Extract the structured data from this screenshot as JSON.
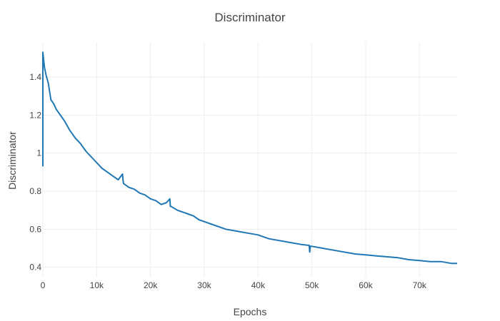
{
  "chart_data": {
    "type": "line",
    "title": "Discriminator",
    "xlabel": "Epochs",
    "ylabel": "Discriminator",
    "xlim": [
      0,
      77000
    ],
    "ylim": [
      0.35,
      1.58
    ],
    "x_ticks": [
      {
        "value": 0,
        "label": "0"
      },
      {
        "value": 10000,
        "label": "10k"
      },
      {
        "value": 20000,
        "label": "20k"
      },
      {
        "value": 30000,
        "label": "30k"
      },
      {
        "value": 40000,
        "label": "40k"
      },
      {
        "value": 50000,
        "label": "50k"
      },
      {
        "value": 60000,
        "label": "60k"
      },
      {
        "value": 70000,
        "label": "70k"
      }
    ],
    "y_ticks": [
      {
        "value": 0.4,
        "label": "0.4"
      },
      {
        "value": 0.6,
        "label": "0.6"
      },
      {
        "value": 0.8,
        "label": "0.8"
      },
      {
        "value": 1.0,
        "label": "1"
      },
      {
        "value": 1.2,
        "label": "1.2"
      },
      {
        "value": 1.4,
        "label": "1.4"
      }
    ],
    "grid": true,
    "legend": "none",
    "series": [
      {
        "color": "#1f77b4",
        "x": [
          0,
          0,
          100,
          300,
          600,
          1000,
          1500,
          2000,
          2500,
          3000,
          3500,
          4000,
          5000,
          6000,
          7000,
          8000,
          9000,
          10000,
          11000,
          12000,
          13000,
          14000,
          14800,
          14900,
          15000,
          16000,
          17000,
          18000,
          19000,
          20000,
          21000,
          22000,
          23000,
          23600,
          23700,
          23800,
          25000,
          26000,
          27000,
          28000,
          29000,
          30000,
          32000,
          34000,
          36000,
          38000,
          40000,
          42000,
          44000,
          46000,
          48000,
          49500,
          49600,
          49700,
          50000,
          52000,
          54000,
          56000,
          58000,
          60000,
          62000,
          64000,
          66000,
          68000,
          70000,
          72000,
          74000,
          76000,
          77000
        ],
        "y": [
          0.93,
          1.53,
          1.5,
          1.45,
          1.41,
          1.37,
          1.28,
          1.26,
          1.23,
          1.21,
          1.19,
          1.17,
          1.12,
          1.08,
          1.05,
          1.01,
          0.98,
          0.95,
          0.92,
          0.9,
          0.88,
          0.86,
          0.89,
          0.86,
          0.84,
          0.82,
          0.81,
          0.79,
          0.78,
          0.76,
          0.75,
          0.73,
          0.74,
          0.76,
          0.72,
          0.72,
          0.7,
          0.69,
          0.68,
          0.67,
          0.65,
          0.64,
          0.62,
          0.6,
          0.59,
          0.58,
          0.57,
          0.55,
          0.54,
          0.53,
          0.52,
          0.515,
          0.48,
          0.51,
          0.51,
          0.5,
          0.49,
          0.48,
          0.47,
          0.465,
          0.46,
          0.455,
          0.45,
          0.44,
          0.435,
          0.43,
          0.43,
          0.42,
          0.42
        ]
      }
    ]
  }
}
